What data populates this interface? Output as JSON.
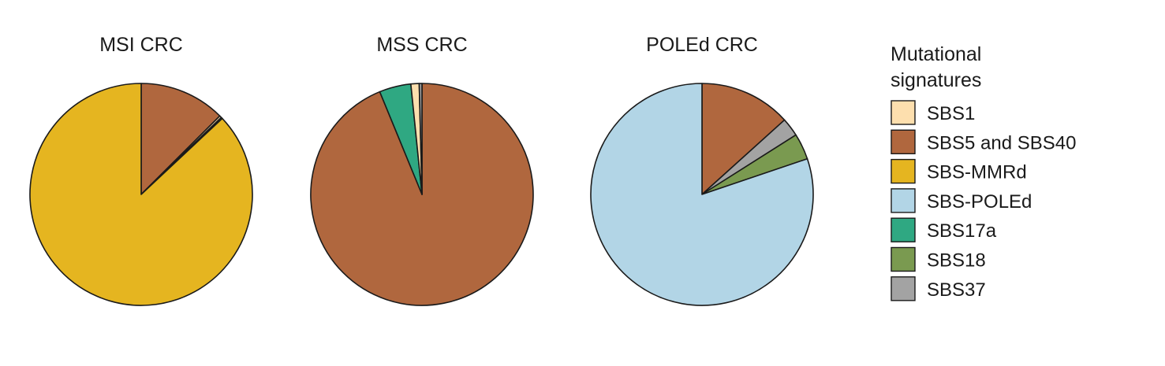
{
  "legend": {
    "title_line1": "Mutational",
    "title_line2": "signatures",
    "items": [
      {
        "key": "SBS1",
        "label": "SBS1",
        "color": "#fddfae"
      },
      {
        "key": "SBS5_40",
        "label": "SBS5 and SBS40",
        "color": "#b0673e"
      },
      {
        "key": "MMRd",
        "label": "SBS-MMRd",
        "color": "#e5b520"
      },
      {
        "key": "POLEd",
        "label": "SBS-POLEd",
        "color": "#b2d5e6"
      },
      {
        "key": "SBS17a",
        "label": "SBS17a",
        "color": "#2fa882"
      },
      {
        "key": "SBS18",
        "label": "SBS18",
        "color": "#7a9a50"
      },
      {
        "key": "SBS37",
        "label": "SBS37",
        "color": "#a3a3a3"
      }
    ]
  },
  "chart_data": [
    {
      "type": "pie",
      "title": "MSI CRC",
      "slices": [
        {
          "label": "SBS5 and SBS40",
          "value": 12.5
        },
        {
          "label": "SBS1",
          "value": 0.3
        },
        {
          "label": "SBS17a",
          "value": 0.2
        },
        {
          "label": "SBS-MMRd",
          "value": 87.0
        }
      ]
    },
    {
      "type": "pie",
      "title": "MSS CRC",
      "slices": [
        {
          "label": "SBS5 and SBS40",
          "value": 93.8
        },
        {
          "label": "SBS17a",
          "value": 4.6
        },
        {
          "label": "SBS1",
          "value": 1.2
        },
        {
          "label": "SBS37",
          "value": 0.4
        }
      ]
    },
    {
      "type": "pie",
      "title": "POLEd CRC",
      "slices": [
        {
          "label": "SBS5 and SBS40",
          "value": 13.3
        },
        {
          "label": "SBS37",
          "value": 2.7
        },
        {
          "label": "SBS18",
          "value": 3.8
        },
        {
          "label": "SBS-POLEd",
          "value": 80.2
        }
      ]
    }
  ]
}
